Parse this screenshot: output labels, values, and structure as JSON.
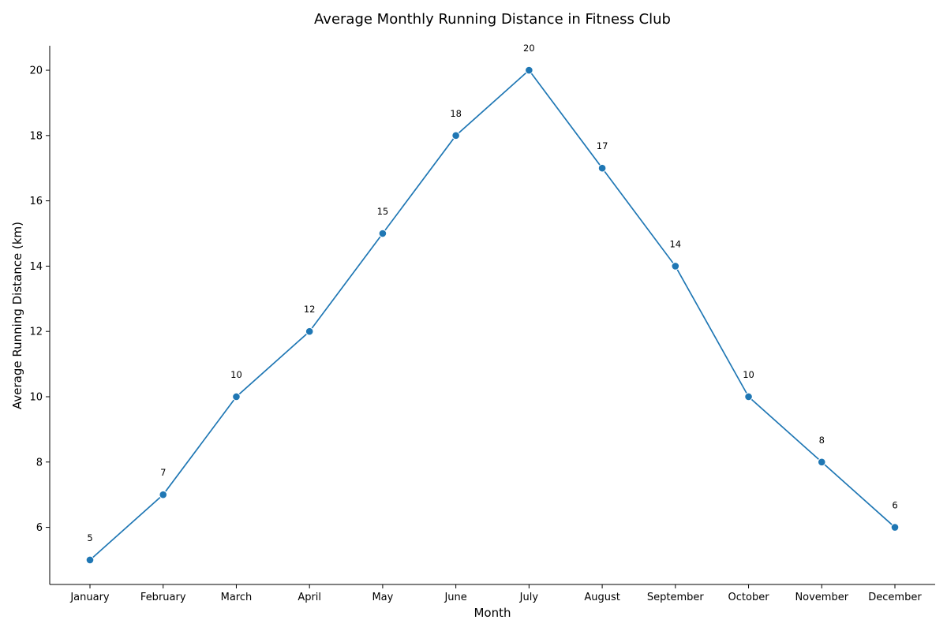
{
  "chart_data": {
    "type": "line",
    "title": "Average Monthly Running Distance in Fitness Club",
    "xlabel": "Month",
    "ylabel": "Average Running Distance (km)",
    "categories": [
      "January",
      "February",
      "March",
      "April",
      "May",
      "June",
      "July",
      "August",
      "September",
      "October",
      "November",
      "December"
    ],
    "series": [
      {
        "values": [
          5,
          7,
          10,
          12,
          15,
          18,
          20,
          17,
          14,
          10,
          8,
          6
        ]
      }
    ],
    "yticks": [
      6,
      8,
      10,
      12,
      14,
      16,
      18,
      20
    ],
    "ylim": [
      4.25,
      20.75
    ],
    "grid": false,
    "legend": "none",
    "data_labels": true,
    "colors": {
      "line": "#1f77b4",
      "marker": "#1f77b4"
    }
  }
}
